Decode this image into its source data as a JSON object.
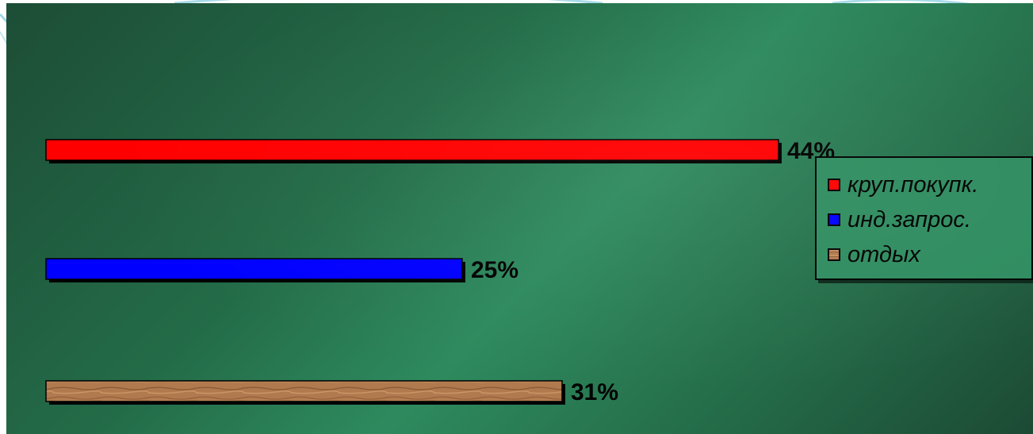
{
  "chart_data": {
    "type": "bar",
    "orientation": "horizontal",
    "categories": [
      "круп.покупк.",
      "инд.запрос.",
      "отдых"
    ],
    "values": [
      44,
      25,
      31
    ],
    "value_labels": [
      "44%",
      "25%",
      "31%"
    ],
    "colors": [
      "#ff0000",
      "#0000ff",
      "#b07a4e"
    ],
    "xlim": [
      0,
      50
    ],
    "grid": false,
    "legend_position": "right",
    "title": "",
    "xlabel": "",
    "ylabel": ""
  },
  "legend": {
    "items": [
      {
        "label": "круп.покупк.",
        "color": "#ff0000"
      },
      {
        "label": "инд.запрос.",
        "color": "#0000ff"
      },
      {
        "label": "отдых",
        "color": "#b07a4e"
      }
    ]
  }
}
